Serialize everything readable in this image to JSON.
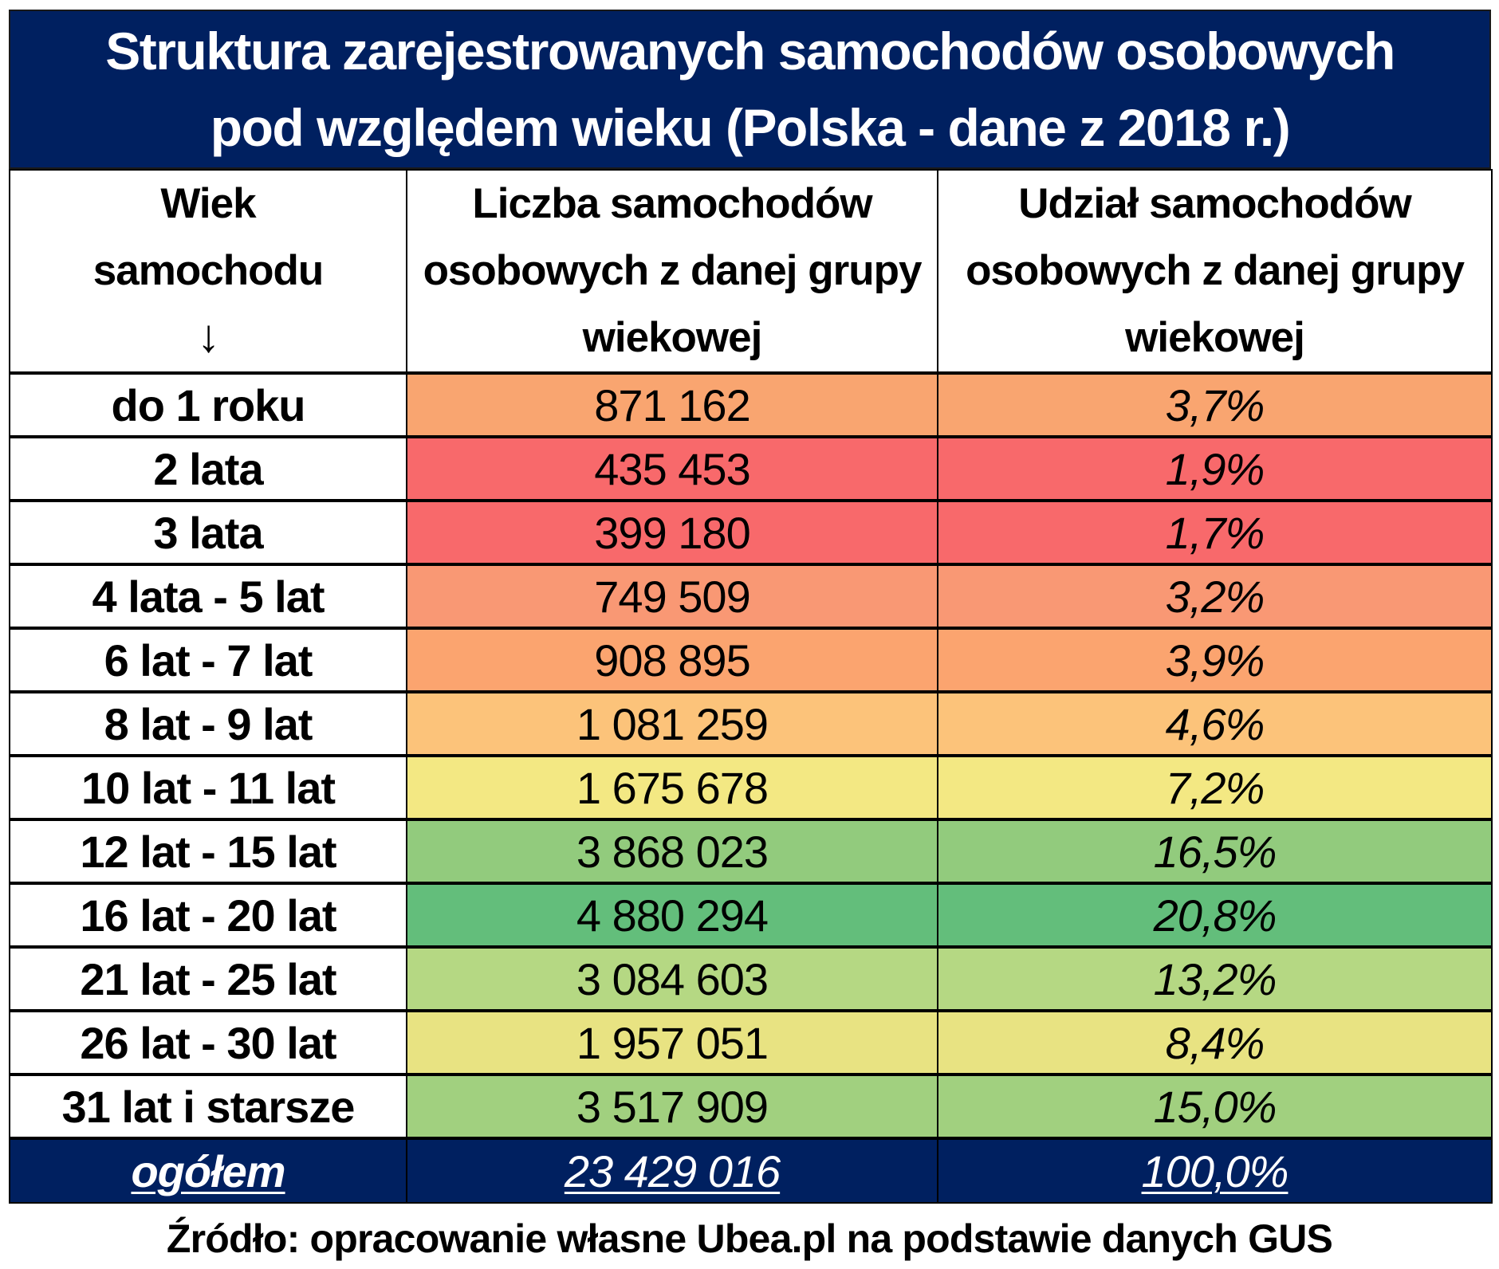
{
  "title": {
    "line1": "Struktura zarejestrowanych samochodów osobowych",
    "line2": "pod względem wieku (Polska - dane z 2018 r.)"
  },
  "header": {
    "col1_line1": "Wiek",
    "col1_line2": "samochodu",
    "col1_arrow_icon": "↓",
    "col2": "Liczba samochodów osobowych z danej grupy wiekowej",
    "col3": "Udział samochodów osobowych z danej grupy wiekowej"
  },
  "rows": [
    {
      "age": "do 1 roku",
      "count": "871 162",
      "share": "3,7%",
      "color": "#F9A570"
    },
    {
      "age": "2 lata",
      "count": "435 453",
      "share": "1,9%",
      "color": "#F8696B"
    },
    {
      "age": "3 lata",
      "count": "399 180",
      "share": "1,7%",
      "color": "#F8696B"
    },
    {
      "age": "4 lata - 5 lat",
      "count": "749 509",
      "share": "3,2%",
      "color": "#F99874"
    },
    {
      "age": "6 lat - 7 lat",
      "count": "908 895",
      "share": "3,9%",
      "color": "#FBA46F"
    },
    {
      "age": "8 lat - 9 lat",
      "count": "1 081 259",
      "share": "4,6%",
      "color": "#FCC37A"
    },
    {
      "age": "10 lat - 11 lat",
      "count": "1 675 678",
      "share": "7,2%",
      "color": "#F3E883"
    },
    {
      "age": "12 lat - 15 lat",
      "count": "3 868 023",
      "share": "16,5%",
      "color": "#92CB7D"
    },
    {
      "age": "16 lat - 20 lat",
      "count": "4 880 294",
      "share": "20,8%",
      "color": "#63BE7B"
    },
    {
      "age": "21 lat - 25 lat",
      "count": "3 084 603",
      "share": "13,2%",
      "color": "#B5D883"
    },
    {
      "age": "26 lat - 30 lat",
      "count": "1 957 051",
      "share": "8,4%",
      "color": "#E8E382"
    },
    {
      "age": "31 lat i starsze",
      "count": "3 517 909",
      "share": "15,0%",
      "color": "#A1D07F"
    }
  ],
  "total": {
    "label": "ogółem",
    "count": "23 429 016",
    "share": "100,0%"
  },
  "source": "Źródło: opracowanie własne Ubea.pl na podstawie danych GUS",
  "colors": {
    "header_navy": "#002060",
    "text_on_navy": "#FFFFFF"
  },
  "chart_data": {
    "type": "table",
    "title": "Struktura zarejestrowanych samochodów osobowych pod względem wieku (Polska - dane z 2018 r.)",
    "columns": [
      "Wiek samochodu",
      "Liczba samochodów osobowych z danej grupy wiekowej",
      "Udział samochodów osobowych z danej grupy wiekowej"
    ],
    "categories": [
      "do 1 roku",
      "2 lata",
      "3 lata",
      "4 lata - 5 lat",
      "6 lat - 7 lat",
      "8 lat - 9 lat",
      "10 lat - 11 lat",
      "12 lat - 15 lat",
      "16 lat - 20 lat",
      "21 lat - 25 lat",
      "26 lat - 30 lat",
      "31 lat i starsze"
    ],
    "series": [
      {
        "name": "Liczba samochodów",
        "values": [
          871162,
          435453,
          399180,
          749509,
          908895,
          1081259,
          1675678,
          3868023,
          4880294,
          3084603,
          1957051,
          3517909
        ]
      },
      {
        "name": "Udział (%)",
        "values": [
          3.7,
          1.9,
          1.7,
          3.2,
          3.9,
          4.6,
          7.2,
          16.5,
          20.8,
          13.2,
          8.4,
          15.0
        ]
      }
    ],
    "totals": {
      "count": 23429016,
      "share": 100.0
    },
    "source": "Źródło: opracowanie własne Ubea.pl na podstawie danych GUS"
  }
}
